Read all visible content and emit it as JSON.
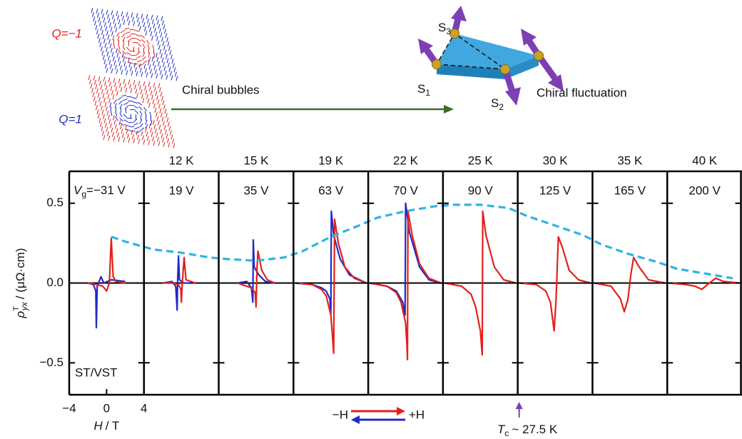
{
  "schematic": {
    "q_minus": "Q=−1",
    "q_plus": "Q=1",
    "bubbles": "Chiral bubbles",
    "fluctuation": "Chiral fluctuation",
    "s1": {
      "symbol": "S",
      "index": "1"
    },
    "s2": {
      "symbol": "S",
      "index": "2"
    },
    "s3": {
      "symbol": "S",
      "index": "3"
    }
  },
  "chart_data": {
    "type": "line-panels",
    "ylabel": {
      "symbol": "ρ",
      "sup": "T",
      "sub": "yx",
      "unit": "/ (μΩ·cm)"
    },
    "xlabel": {
      "symbol": "H",
      "unit": "/ T"
    },
    "ylim": [
      -0.7,
      0.7
    ],
    "yticks": [
      0.5,
      {
        "value": 0,
        "label": "0.0"
      },
      {
        "value": -0.5,
        "label": "−0.5"
      }
    ],
    "xlim": [
      -4,
      4
    ],
    "xticks": [
      {
        "value": -4,
        "label": "−4"
      },
      0,
      4
    ],
    "gate_symbol": "V",
    "gate_subscript": "g",
    "sample": "ST/VST",
    "legend": {
      "from": "−H",
      "to": "+H",
      "up_color": "#e3201c",
      "down_color": "#1f2bc4"
    },
    "envelope_color": "#2fb3e3",
    "annotation": {
      "symbol": "T",
      "subscript": "c",
      "text": "~ 27.5 K",
      "color": "#7d3fb3"
    },
    "panels": [
      {
        "temperature": null,
        "gate": "=−31 V",
        "series": [
          {
            "color": "#1f2bc4",
            "x": [
              -2,
              -1.4,
              -1.15,
              -1.1,
              -1,
              -0.6,
              -0.3,
              0.5,
              2
            ],
            "values": [
              0,
              -0.01,
              -0.05,
              -0.28,
              -0.02,
              0.04,
              0,
              0.02,
              0.01
            ]
          },
          {
            "color": "#e3201c",
            "x": [
              -2,
              -1,
              -0.4,
              0,
              0.3,
              0.5,
              0.7,
              1,
              2
            ],
            "values": [
              0,
              -0.01,
              -0.02,
              -0.05,
              0,
              0.28,
              0.04,
              0.01,
              0
            ]
          }
        ],
        "envelope": {
          "x": [
            0.5,
            2,
            3.8
          ],
          "values": [
            0.29,
            0.26,
            0.23
          ]
        }
      },
      {
        "temperature": "12 K",
        "gate": "19 V",
        "series": [
          {
            "color": "#1f2bc4",
            "x": [
              -2,
              -1,
              -0.6,
              -0.45,
              -0.4,
              -0.3,
              -0.2,
              0.3,
              1
            ],
            "values": [
              0,
              0.01,
              -0.02,
              -0.17,
              0,
              0.17,
              0.02,
              0,
              0
            ]
          },
          {
            "color": "#e3201c",
            "x": [
              -2,
              -1,
              -0.3,
              -0.05,
              0,
              0.1,
              0.3,
              0.5,
              1,
              1.5
            ],
            "values": [
              0,
              0,
              -0.01,
              -0.04,
              -0.12,
              0,
              0.16,
              0.02,
              0.01,
              0
            ]
          }
        ],
        "envelope": {
          "x": [
            -3,
            0,
            3
          ],
          "values": [
            0.21,
            0.19,
            0.16
          ]
        }
      },
      {
        "temperature": "15 K",
        "gate": "35 V",
        "series": [
          {
            "color": "#1f2bc4",
            "x": [
              -2,
              -1,
              -0.5,
              -0.35,
              -0.3,
              -0.2,
              0.3,
              1,
              2
            ],
            "values": [
              0,
              0.01,
              -0.03,
              -0.12,
              0.27,
              0.1,
              0.05,
              0.01,
              0
            ]
          },
          {
            "color": "#e3201c",
            "x": [
              -2,
              -1.5,
              -0.5,
              -0.1,
              0,
              0.1,
              0.2,
              0.6,
              1.2,
              2
            ],
            "values": [
              0,
              -0.01,
              -0.03,
              -0.06,
              -0.15,
              0.1,
              0.2,
              0.08,
              0.02,
              0
            ]
          }
        ],
        "envelope": {
          "x": [
            -3,
            0,
            3
          ],
          "values": [
            0.15,
            0.14,
            0.16
          ]
        }
      },
      {
        "temperature": "19 K",
        "gate": "63 V",
        "series": [
          {
            "color": "#1f2bc4",
            "x": [
              -3.8,
              -2,
              -1,
              -0.5,
              -0.1,
              0,
              0.05,
              0.3,
              1,
              2,
              3.8
            ],
            "values": [
              0,
              -0.01,
              -0.03,
              -0.05,
              -0.1,
              -0.2,
              0.45,
              0.3,
              0.15,
              0.05,
              0
            ]
          },
          {
            "color": "#e3201c",
            "x": [
              -3.8,
              -2,
              -1,
              -0.5,
              0,
              0.2,
              0.3,
              0.4,
              0.8,
              1.5,
              2.5,
              3.8
            ],
            "values": [
              0,
              -0.01,
              -0.04,
              -0.08,
              -0.2,
              -0.35,
              -0.44,
              0.4,
              0.25,
              0.1,
              0.03,
              0
            ]
          }
        ],
        "envelope": {
          "x": [
            -3,
            0,
            3
          ],
          "values": [
            0.2,
            0.29,
            0.36
          ]
        }
      },
      {
        "temperature": "22 K",
        "gate": "70 V",
        "series": [
          {
            "color": "#1f2bc4",
            "x": [
              -3.8,
              -2,
              -1,
              -0.3,
              -0.05,
              0,
              0.4,
              1.5,
              2.5,
              3.8
            ],
            "values": [
              0,
              -0.02,
              -0.05,
              -0.12,
              -0.2,
              0.5,
              0.32,
              0.1,
              0.02,
              0
            ]
          },
          {
            "color": "#e3201c",
            "x": [
              -3.8,
              -2,
              -1,
              -0.5,
              0,
              0.15,
              0.2,
              0.25,
              0.7,
              1.5,
              2.5,
              3.8
            ],
            "values": [
              0,
              -0.02,
              -0.06,
              -0.12,
              -0.25,
              -0.4,
              -0.48,
              0.45,
              0.3,
              0.12,
              0.03,
              0
            ]
          }
        ],
        "envelope": {
          "x": [
            -3,
            0,
            3
          ],
          "values": [
            0.41,
            0.45,
            0.48
          ]
        }
      },
      {
        "temperature": "25 K",
        "gate": "90 V",
        "series": [
          {
            "color": "#e3201c",
            "x": [
              -3.8,
              -2,
              -1,
              -0.5,
              0,
              0.2,
              0.25,
              0.6,
              1.5,
              2.5,
              3.8
            ],
            "values": [
              0,
              -0.02,
              -0.07,
              -0.15,
              -0.3,
              -0.45,
              0.45,
              0.3,
              0.1,
              0.02,
              0
            ]
          }
        ],
        "envelope": {
          "x": [
            -3,
            0,
            3
          ],
          "values": [
            0.49,
            0.49,
            0.47
          ]
        }
      },
      {
        "temperature": "30 K",
        "gate": "125 V",
        "series": [
          {
            "color": "#e3201c",
            "x": [
              -3.8,
              -2,
              -1,
              -0.5,
              -0.1,
              0.1,
              0.35,
              0.8,
              1.5,
              2.5,
              3.8
            ],
            "values": [
              0,
              -0.01,
              -0.05,
              -0.12,
              -0.3,
              -0.1,
              0.29,
              0.22,
              0.08,
              0.02,
              0
            ]
          }
        ],
        "envelope": {
          "x": [
            -3,
            0,
            3
          ],
          "values": [
            0.42,
            0.36,
            0.3
          ]
        }
      },
      {
        "temperature": "35 K",
        "gate": "165 V",
        "series": [
          {
            "color": "#e3201c",
            "x": [
              -3.8,
              -2,
              -1,
              -0.6,
              -0.2,
              0.1,
              0.4,
              1,
              2,
              3.8
            ],
            "values": [
              0,
              -0.02,
              -0.1,
              -0.18,
              -0.1,
              0.05,
              0.16,
              0.1,
              0.02,
              0
            ]
          }
        ],
        "envelope": {
          "x": [
            -3,
            0,
            3
          ],
          "values": [
            0.24,
            0.18,
            0.13
          ]
        }
      },
      {
        "temperature": "40 K",
        "gate": "200 V",
        "series": [
          {
            "color": "#e3201c",
            "x": [
              -3.8,
              -2,
              -1,
              -0.3,
              0.5,
              1.2,
              2,
              3.8
            ],
            "values": [
              0,
              -0.01,
              -0.02,
              -0.04,
              0,
              0.03,
              0.01,
              0
            ]
          }
        ],
        "envelope": {
          "x": [
            -3,
            0,
            3
          ],
          "values": [
            0.09,
            0.06,
            0.03
          ]
        }
      }
    ]
  }
}
